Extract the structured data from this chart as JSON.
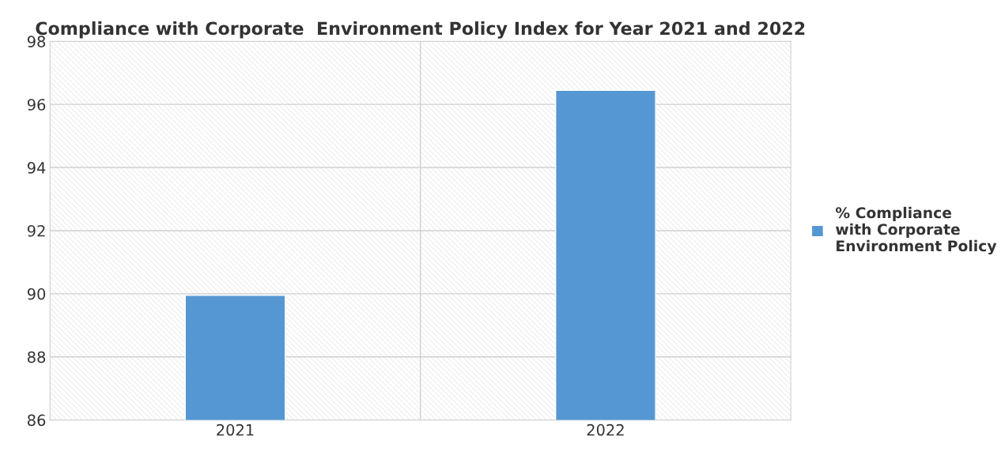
{
  "chart_data": {
    "type": "bar",
    "title": "Compliance with Corporate  Environment Policy Index for Year 2021 and 2022",
    "categories": [
      "2021",
      "2022"
    ],
    "series": [
      {
        "name": "% Compliance\nwith Corporate\nEnvironment Policy",
        "color": "#5597d3",
        "values": [
          89.95,
          96.45
        ]
      }
    ],
    "ylim": [
      86,
      98
    ],
    "yticks": [
      86,
      88,
      90,
      92,
      94,
      96,
      98
    ],
    "grid": true,
    "legend": "right"
  }
}
